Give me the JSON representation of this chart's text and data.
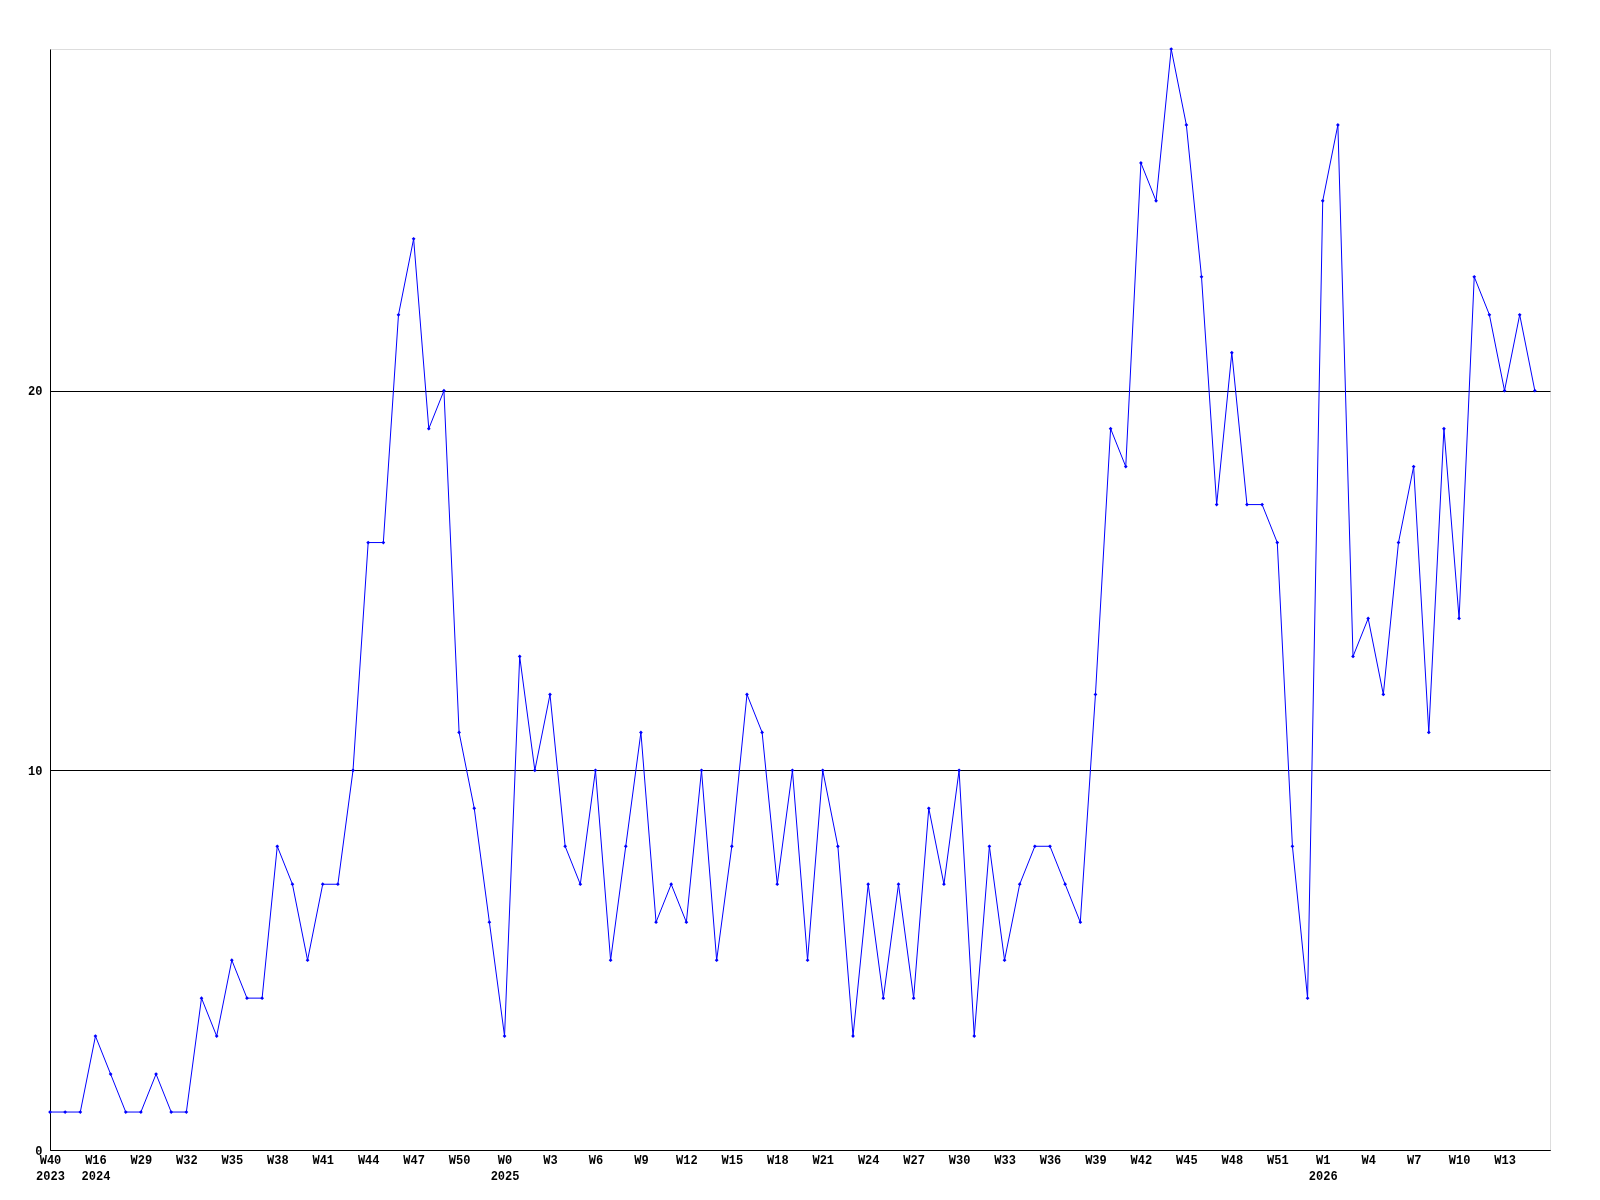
{
  "chart_data": {
    "type": "line",
    "categories": [
      "W40\n2023",
      null,
      null,
      "W16\n2024",
      null,
      null,
      "W29",
      null,
      null,
      "W32",
      null,
      null,
      "W35",
      null,
      null,
      "W38",
      null,
      null,
      "W41",
      null,
      null,
      "W44",
      null,
      null,
      "W47",
      null,
      null,
      "W50",
      null,
      null,
      "W0\n2025",
      null,
      null,
      "W3",
      null,
      null,
      "W6",
      null,
      null,
      "W9",
      null,
      null,
      "W12",
      null,
      null,
      "W15",
      null,
      null,
      "W18",
      null,
      null,
      "W21",
      null,
      null,
      "W24",
      null,
      null,
      "W27",
      null,
      null,
      "W30",
      null,
      null,
      "W33",
      null,
      null,
      "W36",
      null,
      null,
      "W39",
      null,
      null,
      "W42",
      null,
      null,
      "W45",
      null,
      null,
      "W48",
      null,
      null,
      "W51",
      null,
      null,
      "W1\n2026",
      null,
      null,
      "W4",
      null,
      null,
      "W7",
      null,
      null,
      "W10",
      null,
      null,
      "W13",
      null,
      null
    ],
    "series": [
      {
        "color": "#0000ff",
        "values": [
          1,
          1,
          1,
          3,
          2,
          1,
          1,
          2,
          1,
          1,
          4,
          3,
          5,
          4,
          4,
          8,
          7,
          5,
          7,
          7,
          10,
          16,
          16,
          22,
          24,
          19,
          20,
          11,
          9,
          6,
          3,
          13,
          10,
          12,
          8,
          7,
          10,
          5,
          8,
          11,
          6,
          7,
          6,
          10,
          5,
          8,
          12,
          11,
          7,
          10,
          5,
          10,
          8,
          3,
          7,
          4,
          7,
          4,
          9,
          7,
          10,
          3,
          8,
          5,
          7,
          8,
          8,
          7,
          6,
          12,
          19,
          18,
          26,
          25,
          29,
          27,
          23,
          17,
          21,
          17,
          17,
          16,
          8,
          4,
          25,
          27,
          13,
          14,
          12,
          16,
          18,
          11,
          19,
          14,
          23,
          22,
          20,
          22,
          20
        ]
      }
    ],
    "ylim": [
      0,
      29
    ],
    "yticks": [
      0,
      10,
      20
    ],
    "grid": "y",
    "marker": "diamond",
    "line_style": "solid"
  }
}
